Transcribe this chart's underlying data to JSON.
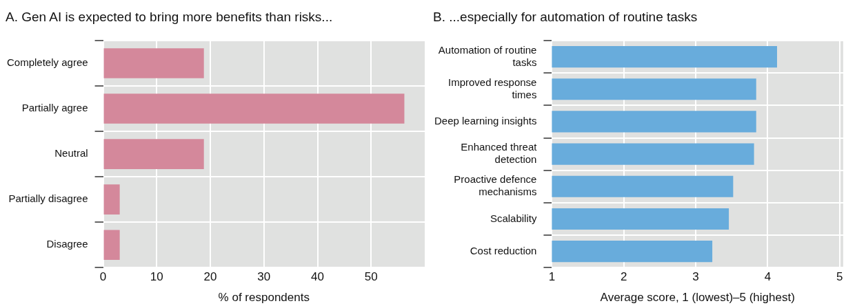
{
  "chart_data": [
    {
      "type": "bar",
      "orientation": "horizontal",
      "title": "A. Gen AI is expected to bring more benefits than risks...",
      "categories": [
        "Completely agree",
        "Partially agree",
        "Neutral",
        "Partially disagree",
        "Disagree"
      ],
      "values": [
        18.8,
        56.2,
        18.8,
        3.1,
        3.1
      ],
      "color": "#d4889b",
      "xlabel": "% of respondents",
      "xlim": [
        0,
        60
      ],
      "xticks": [
        0,
        10,
        20,
        30,
        40,
        50
      ],
      "grid": true
    },
    {
      "type": "bar",
      "orientation": "horizontal",
      "title": "B. ...especially for automation of routine tasks",
      "categories": [
        "Automation of routine tasks",
        "Improved response times",
        "Deep learning insights",
        "Enhanced threat detection",
        "Proactive defence mechanisms",
        "Scalability",
        "Cost reduction"
      ],
      "values": [
        4.13,
        3.84,
        3.84,
        3.81,
        3.52,
        3.46,
        3.23
      ],
      "color": "#68acdc",
      "xlabel": "Average score, 1 (lowest)–5 (highest)",
      "xlim": [
        1,
        5.05
      ],
      "xticks": [
        1,
        2,
        3,
        4,
        5
      ],
      "grid": true
    }
  ]
}
